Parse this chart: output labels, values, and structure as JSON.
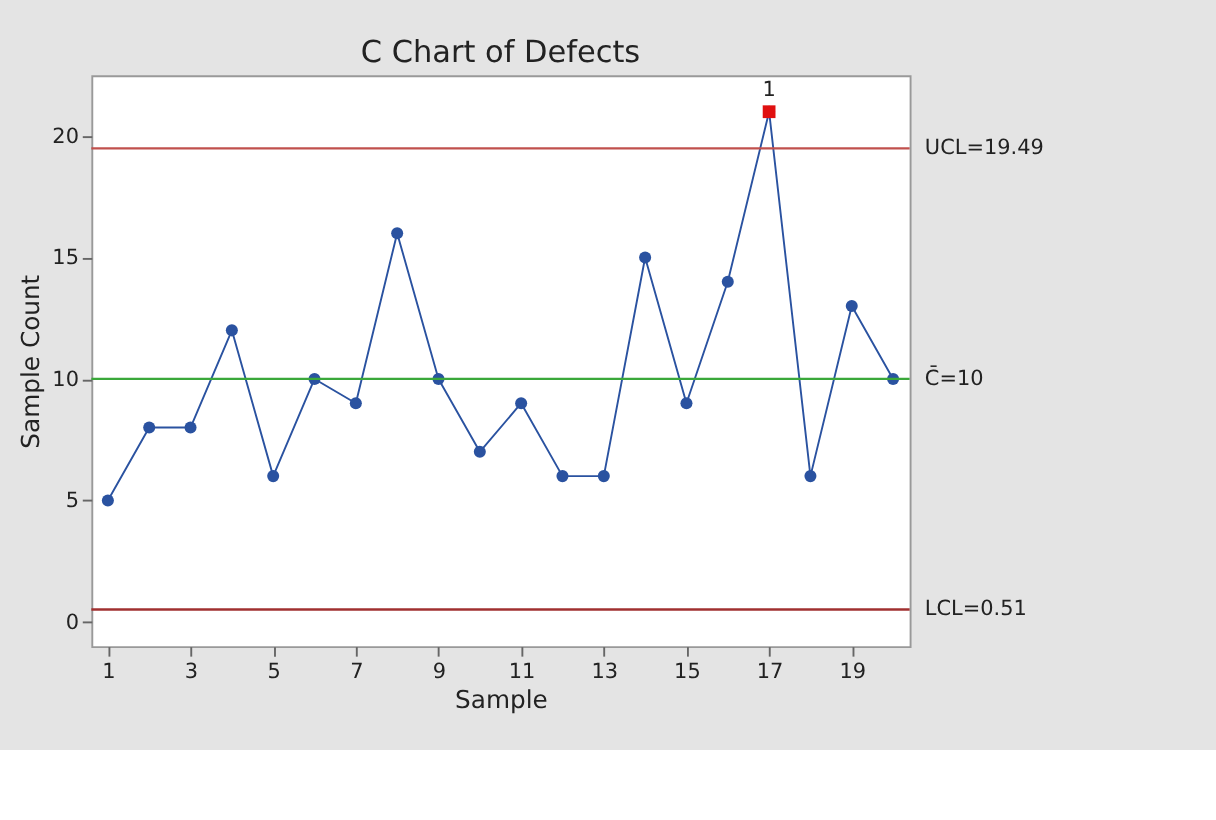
{
  "chart_data": {
    "type": "line",
    "title": "C Chart of Defects",
    "xlabel": "Sample",
    "ylabel": "Sample Count",
    "x": [
      1,
      2,
      3,
      4,
      5,
      6,
      7,
      8,
      9,
      10,
      11,
      12,
      13,
      14,
      15,
      16,
      17,
      18,
      19,
      20
    ],
    "series": [
      {
        "color": "#2a52a0",
        "values": [
          5,
          8,
          8,
          12,
          6,
          10,
          9,
          16,
          10,
          7,
          9,
          6,
          6,
          15,
          9,
          14,
          21,
          6,
          13,
          10
        ],
        "marker": "circle"
      },
      {
        "type": "scatter",
        "color": "#e01010",
        "x": [
          17
        ],
        "values": [
          21
        ],
        "marker": "square"
      }
    ],
    "xlim": [
      0.6,
      20.4
    ],
    "xticks": [
      1,
      3,
      5,
      7,
      9,
      11,
      13,
      15,
      17,
      19
    ],
    "ylim": [
      -1,
      22.5
    ],
    "yticks": [
      0,
      5,
      10,
      15,
      20
    ],
    "ref_lines": [
      {
        "axis": "y",
        "value": 19.49,
        "label": "UCL=19.49",
        "color": "#c0504d"
      },
      {
        "axis": "y",
        "value": 10,
        "label": "C̄=10",
        "color": "#3aa83a"
      },
      {
        "axis": "y",
        "value": 0.51,
        "label": "LCL=0.51",
        "color": "#a03030"
      }
    ],
    "annotations": [
      {
        "text": "1",
        "x": 17,
        "y": 21
      }
    ],
    "grid": false
  }
}
